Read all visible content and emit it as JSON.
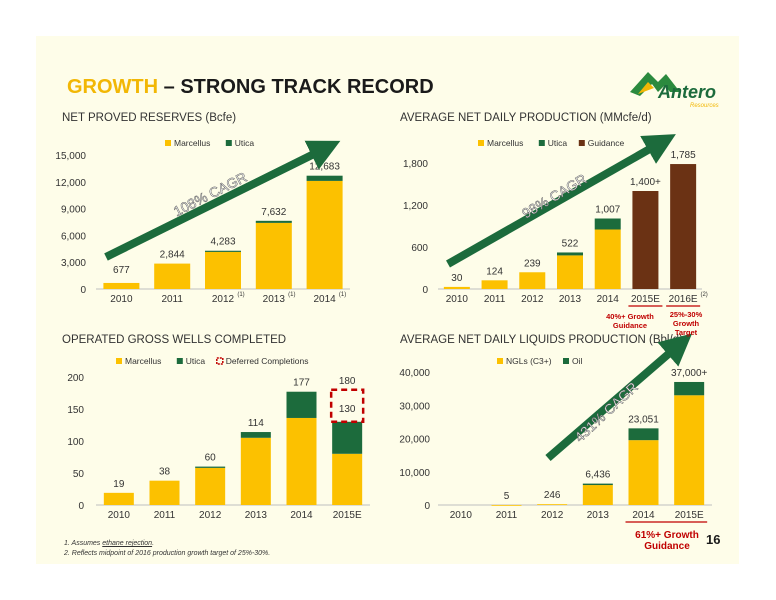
{
  "title": {
    "accent": "GROWTH",
    "rest": " – STRONG TRACK RECORD"
  },
  "logo": {
    "name": "Antero",
    "sub": "Resources"
  },
  "page_number": "16",
  "footnotes": {
    "n1_prefix": "1.  Assumes ",
    "n1_link": "ethane rejection",
    "n1_suffix": ".",
    "n2": "2.  Reflects midpoint of 2016 production growth target of 25%-30%."
  },
  "colors": {
    "marcellus": "#fcc100",
    "utica": "#1c6b3c",
    "guidance": "#6b3214",
    "arrow": "#1c6b3c",
    "red": "#c00000"
  },
  "chart_data": [
    {
      "id": "reserves",
      "type": "bar",
      "title": "NET PROVED RESERVES (Bcfe)",
      "categories": [
        "2010",
        "2011",
        "2012",
        "2013",
        "2014"
      ],
      "category_sup": [
        "",
        "",
        "(1)",
        "(1)",
        "(1)"
      ],
      "series": [
        {
          "name": "Marcellus",
          "values": [
            677,
            2844,
            4150,
            7400,
            12100
          ]
        },
        {
          "name": "Utica",
          "values": [
            0,
            0,
            133,
            232,
            583
          ]
        }
      ],
      "totals": [
        "677",
        "2,844",
        "4,283",
        "7,632",
        "12,683"
      ],
      "yticks": [
        "0",
        "3,000",
        "6,000",
        "9,000",
        "12,000",
        "15,000"
      ],
      "ylim": [
        0,
        15000
      ],
      "annotation": "108% CAGR"
    },
    {
      "id": "production",
      "type": "bar",
      "title": "AVERAGE NET DAILY PRODUCTION (MMcfe/d)",
      "categories": [
        "2010",
        "2011",
        "2012",
        "2013",
        "2014",
        "2015E",
        "2016E"
      ],
      "category_sup": [
        "",
        "",
        "",
        "",
        "",
        "",
        "(2)"
      ],
      "series": [
        {
          "name": "Marcellus",
          "values": [
            30,
            124,
            239,
            480,
            850,
            0,
            0
          ]
        },
        {
          "name": "Utica",
          "values": [
            0,
            0,
            0,
            42,
            157,
            0,
            0
          ]
        },
        {
          "name": "Guidance",
          "values": [
            0,
            0,
            0,
            0,
            0,
            1400,
            1785
          ]
        }
      ],
      "totals": [
        "30",
        "124",
        "239",
        "522",
        "1,007",
        "1,400+",
        "1,785"
      ],
      "yticks": [
        "0",
        "600",
        "1,200",
        "1,800"
      ],
      "ylim": [
        0,
        1900
      ],
      "annotation": "98% CAGR",
      "notes": [
        "40%+ Growth Guidance",
        "25%-30% Growth Target"
      ]
    },
    {
      "id": "wells",
      "type": "bar",
      "title": "OPERATED GROSS WELLS COMPLETED",
      "categories": [
        "2010",
        "2011",
        "2012",
        "2013",
        "2014",
        "2015E"
      ],
      "series": [
        {
          "name": "Marcellus",
          "values": [
            19,
            38,
            58,
            105,
            136,
            80
          ]
        },
        {
          "name": "Utica",
          "values": [
            0,
            0,
            2,
            9,
            41,
            50
          ]
        },
        {
          "name": "Deferred Completions",
          "values": [
            0,
            0,
            0,
            0,
            0,
            50
          ]
        }
      ],
      "totals": [
        "19",
        "38",
        "60",
        "114",
        "177",
        "180"
      ],
      "inner_label": "130",
      "yticks": [
        "0",
        "50",
        "100",
        "150",
        "200"
      ],
      "ylim": [
        0,
        200
      ]
    },
    {
      "id": "liquids",
      "type": "bar",
      "title": "AVERAGE NET DAILY LIQUIDS PRODUCTION (Bbl/d)",
      "categories": [
        "2010",
        "2011",
        "2012",
        "2013",
        "2014",
        "2015E"
      ],
      "series": [
        {
          "name": "NGLs (C3+)",
          "values": [
            0,
            5,
            246,
            6000,
            19500,
            33000
          ]
        },
        {
          "name": "Oil",
          "values": [
            0,
            0,
            0,
            436,
            3551,
            4000
          ]
        }
      ],
      "totals": [
        "",
        "5",
        "246",
        "6,436",
        "23,051",
        "37,000+"
      ],
      "yticks": [
        "0",
        "10,000",
        "20,000",
        "30,000",
        "40,000"
      ],
      "ylim": [
        0,
        40000
      ],
      "annotation": "431% CAGR",
      "notes": [
        "61%+ Growth Guidance"
      ]
    }
  ]
}
